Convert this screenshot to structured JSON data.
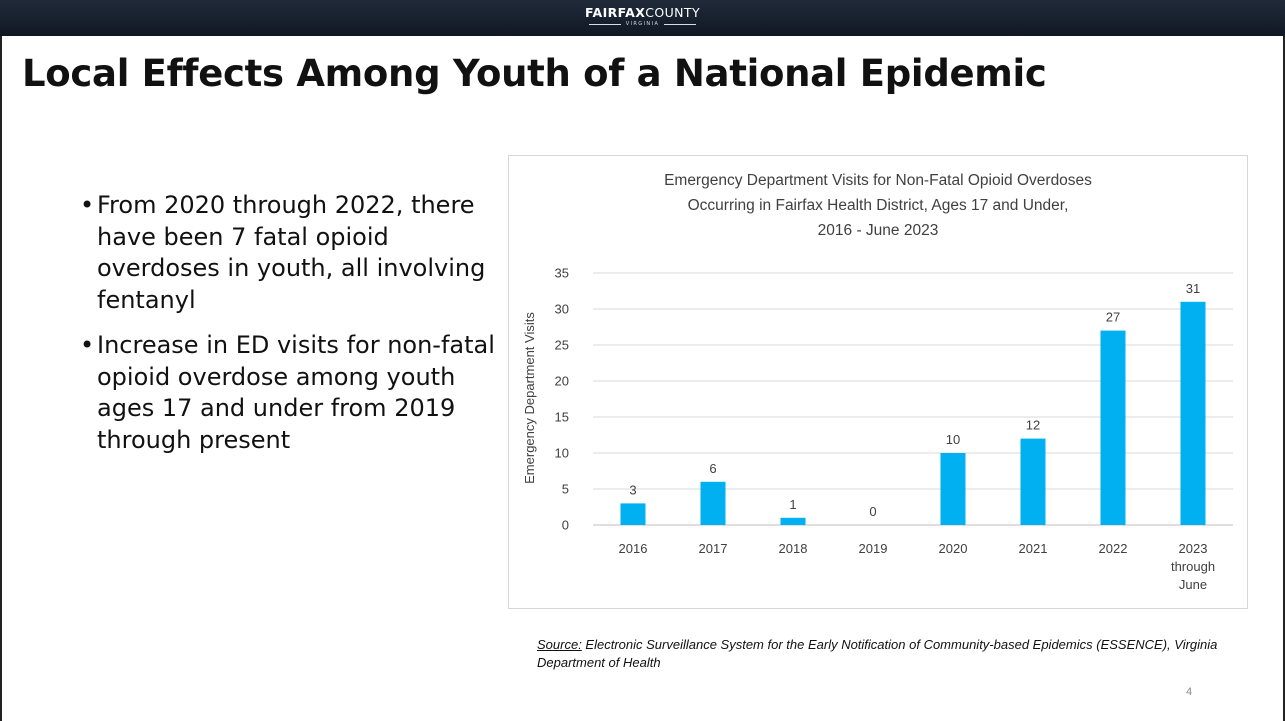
{
  "header": {
    "brand_strong": "FAIRFAX",
    "brand_light": "COUNTY",
    "brand_sub": "VIRGINIA",
    "background": "#1a2230"
  },
  "slide": {
    "title": "Local Effects Among Youth of a National Epidemic",
    "bullets": [
      "From 2020 through 2022, there have been 7 fatal opioid overdoses in youth, all involving fentanyl",
      "Increase in ED visits for non-fatal opioid overdose among youth ages 17 and under from 2019 through present"
    ],
    "source_label": "Source:",
    "source_text": " Electronic Surveillance System for the Early Notification of Community-based Epidemics (ESSENCE), Virginia Department of Health",
    "slide_number": "4"
  },
  "chart_data": {
    "type": "bar",
    "title": [
      "Emergency Department Visits for Non-Fatal Opioid Overdoses",
      "Occurring in Fairfax Health District, Ages 17 and Under,",
      "2016 - June 2023"
    ],
    "xlabel": "",
    "ylabel": "Emergency Department Visits",
    "categories": [
      [
        "2016"
      ],
      [
        "2017"
      ],
      [
        "2018"
      ],
      [
        "2019"
      ],
      [
        "2020"
      ],
      [
        "2021"
      ],
      [
        "2022"
      ],
      [
        "2023",
        "through",
        "June"
      ]
    ],
    "values": [
      3,
      6,
      1,
      0,
      10,
      12,
      27,
      31
    ],
    "ylim": [
      0,
      35
    ],
    "yticks": [
      0,
      5,
      10,
      15,
      20,
      25,
      30,
      35
    ],
    "grid": true,
    "legend": "none",
    "bar_color": "#00b0f0",
    "grid_color": "#d9d9d9",
    "text_color": "#404040"
  }
}
